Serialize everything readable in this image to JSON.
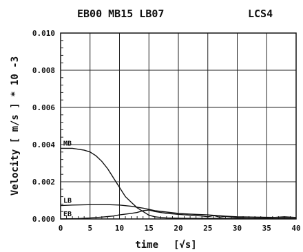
{
  "chart_data": {
    "type": "line",
    "title_left": "EB00 MB15 LB07",
    "title_right": "LCS4",
    "xlabel": "time",
    "xunit": "[√s]",
    "ylabel": "Velocity  [ m/s ]  * 10 -3",
    "xlim": [
      0,
      40
    ],
    "ylim": [
      0,
      0.01
    ],
    "x_ticks": [
      "0",
      "5",
      "10",
      "15",
      "20",
      "25",
      "30",
      "35",
      "40"
    ],
    "y_ticks": [
      "0.000",
      "0.002",
      "0.004",
      "0.006",
      "0.008",
      "0.010"
    ],
    "grid": true,
    "series": [
      {
        "name": "MB",
        "color": "#111111",
        "x": [
          0,
          2,
          4,
          5,
          6,
          7,
          8,
          9,
          10,
          11,
          12,
          13,
          14,
          15,
          16,
          17,
          18,
          20,
          22,
          25,
          28,
          30,
          35,
          40
        ],
        "y": [
          0.0038,
          0.0038,
          0.0037,
          0.0036,
          0.0034,
          0.0031,
          0.0027,
          0.0022,
          0.0017,
          0.0012,
          0.0009,
          0.0006,
          0.0004,
          0.0002,
          0.00012,
          8e-05,
          5e-05,
          4e-05,
          3e-05,
          3e-05,
          3e-05,
          2e-05,
          2e-05,
          2e-05
        ]
      },
      {
        "name": "LB",
        "color": "#111111",
        "x": [
          0,
          2,
          5,
          8,
          10,
          12,
          14,
          15,
          16,
          18,
          20,
          22,
          25,
          28,
          30,
          33,
          35,
          38,
          40
        ],
        "y": [
          0.00072,
          0.00075,
          0.00077,
          0.00077,
          0.00075,
          0.00068,
          0.00058,
          0.00052,
          0.00045,
          0.00037,
          0.0003,
          0.00026,
          0.00022,
          0.00015,
          0.00012,
          0.0001,
          9e-05,
          8e-05,
          8e-05
        ]
      },
      {
        "name": "EB",
        "color": "#111111",
        "x": [
          0,
          3,
          5,
          7,
          9,
          10,
          12,
          13,
          14,
          15,
          16,
          17,
          18,
          20,
          22,
          24,
          25,
          26,
          27,
          28,
          30,
          32,
          35,
          38,
          40
        ],
        "y": [
          0.0,
          2e-05,
          5e-05,
          0.0001,
          0.00016,
          0.00022,
          0.0003,
          0.00035,
          0.00045,
          0.00048,
          0.0004,
          0.00035,
          0.0003,
          0.00025,
          0.0002,
          0.00016,
          0.00012,
          0.00018,
          0.0001,
          0.00014,
          7e-05,
          9e-05,
          6e-05,
          0.00012,
          8e-05
        ]
      }
    ]
  }
}
